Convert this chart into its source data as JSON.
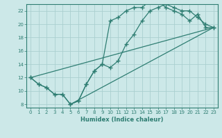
{
  "xlabel": "Humidex (Indice chaleur)",
  "bg_color": "#cce8e8",
  "grid_color": "#aacfcf",
  "line_color": "#2e7d72",
  "xlim": [
    -0.5,
    23.5
  ],
  "ylim": [
    7.5,
    23.0
  ],
  "xticks": [
    0,
    1,
    2,
    3,
    4,
    5,
    6,
    7,
    8,
    9,
    10,
    11,
    12,
    13,
    14,
    15,
    16,
    17,
    18,
    19,
    20,
    21,
    22,
    23
  ],
  "yticks": [
    8,
    10,
    12,
    14,
    16,
    18,
    20,
    22
  ],
  "line1_x": [
    0,
    1,
    2,
    3,
    4,
    5,
    6,
    7,
    8,
    9,
    10,
    11,
    12,
    13,
    14,
    15,
    16,
    17,
    18,
    19,
    20,
    21,
    22,
    23
  ],
  "line1_y": [
    12,
    11,
    10.5,
    9.5,
    9.5,
    8.0,
    8.5,
    11.0,
    13.0,
    14.0,
    20.5,
    21.0,
    22.0,
    22.5,
    22.5,
    23.5,
    23.5,
    22.5,
    22.0,
    21.5,
    20.5,
    21.5,
    19.5,
    19.5
  ],
  "line2_x": [
    0,
    1,
    2,
    3,
    4,
    5,
    6,
    7,
    8,
    9,
    10,
    11,
    12,
    13,
    14,
    15,
    16,
    17,
    18,
    19,
    20,
    21,
    22,
    23
  ],
  "line2_y": [
    12,
    11,
    10.5,
    9.5,
    9.5,
    8.0,
    8.5,
    11.0,
    13.0,
    14.0,
    13.5,
    14.5,
    17.0,
    18.5,
    20.5,
    22.0,
    22.5,
    23.0,
    22.5,
    22.0,
    22.0,
    21.0,
    20.0,
    19.5
  ],
  "line3_x": [
    0,
    23
  ],
  "line3_y": [
    12,
    19.5
  ],
  "line4_x": [
    5,
    23
  ],
  "line4_y": [
    8.0,
    19.5
  ]
}
